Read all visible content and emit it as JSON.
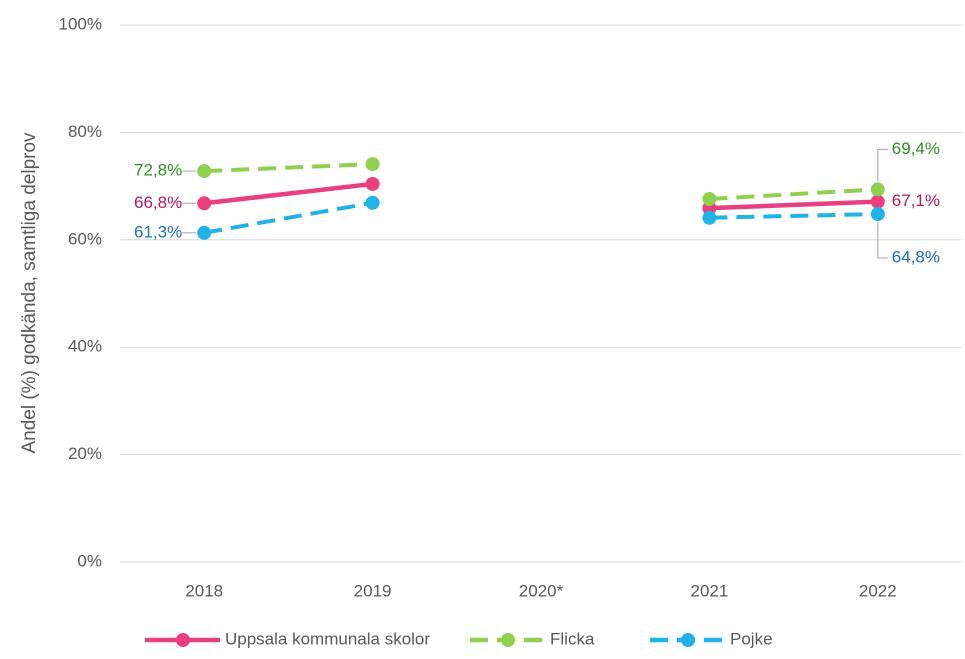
{
  "chart_data": {
    "type": "line",
    "y_axis_label": "Andel (%) godkända, samtliga delprov",
    "categories": [
      "2018",
      "2019",
      "2020*",
      "2021",
      "2022"
    ],
    "series": [
      {
        "name": "Uppsala kommunala skolor",
        "color": "#e8407f",
        "dashed": false,
        "values": [
          66.8,
          70.4,
          null,
          65.9,
          67.1
        ],
        "value_labels": [
          "66,8%",
          null,
          null,
          null,
          "67,1%"
        ]
      },
      {
        "name": "Flicka",
        "color": "#8fd14f",
        "dashed": true,
        "values": [
          72.8,
          74.1,
          null,
          67.6,
          69.4
        ],
        "value_labels": [
          "72,8%",
          null,
          null,
          null,
          "69,4%"
        ]
      },
      {
        "name": "Pojke",
        "color": "#1fb3e8",
        "dashed": true,
        "values": [
          61.3,
          66.9,
          null,
          64.1,
          64.8
        ],
        "value_labels": [
          "61,3%",
          null,
          null,
          null,
          "64,8%"
        ]
      }
    ],
    "ylim": [
      0,
      100
    ],
    "yticks": [
      {
        "value": 0,
        "label": "0%"
      },
      {
        "value": 20,
        "label": "20%"
      },
      {
        "value": 40,
        "label": "40%"
      },
      {
        "value": 60,
        "label": "60%"
      },
      {
        "value": 80,
        "label": "80%"
      },
      {
        "value": 100,
        "label": "100%"
      }
    ],
    "grid": true,
    "legend": "bottom"
  }
}
